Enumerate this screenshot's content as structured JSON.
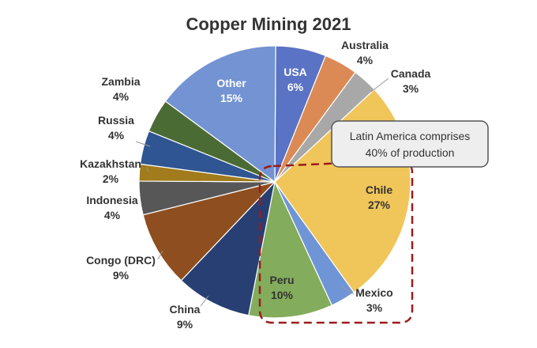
{
  "chart_data": {
    "type": "pie",
    "title": "Copper Mining 2021",
    "slices": [
      {
        "name": "USA",
        "value": 6,
        "label": "6%",
        "color": "#5b73c4"
      },
      {
        "name": "Australia",
        "value": 4,
        "label": "4%",
        "color": "#dc8a55"
      },
      {
        "name": "Canada",
        "value": 3,
        "label": "3%",
        "color": "#a8a8a8"
      },
      {
        "name": "Chile",
        "value": 27,
        "label": "27%",
        "color": "#f0c65a"
      },
      {
        "name": "Mexico",
        "value": 3,
        "label": "3%",
        "color": "#6f95d6"
      },
      {
        "name": "Peru",
        "value": 10,
        "label": "10%",
        "color": "#83ac5c"
      },
      {
        "name": "China",
        "value": 9,
        "label": "9%",
        "color": "#283f73"
      },
      {
        "name": "Congo (DRC)",
        "value": 9,
        "label": "9%",
        "color": "#8e4e20"
      },
      {
        "name": "Indonesia",
        "value": 4,
        "label": "4%",
        "color": "#575757"
      },
      {
        "name": "Kazakhstan",
        "value": 2,
        "label": "2%",
        "color": "#a17b1c"
      },
      {
        "name": "Russia",
        "value": 4,
        "label": "4%",
        "color": "#2f5592"
      },
      {
        "name": "Zambia",
        "value": 4,
        "label": "4%",
        "color": "#4b6b34"
      },
      {
        "name": "Other",
        "value": 15,
        "label": "15%",
        "color": "#7393d3"
      }
    ],
    "annotation": {
      "text_line1": "Latin America  comprises",
      "text_line2": "40% of production",
      "highlight": "dashed-box-around-Chile-Peru-Mexico",
      "highlight_color": "#9b1c1c"
    }
  }
}
